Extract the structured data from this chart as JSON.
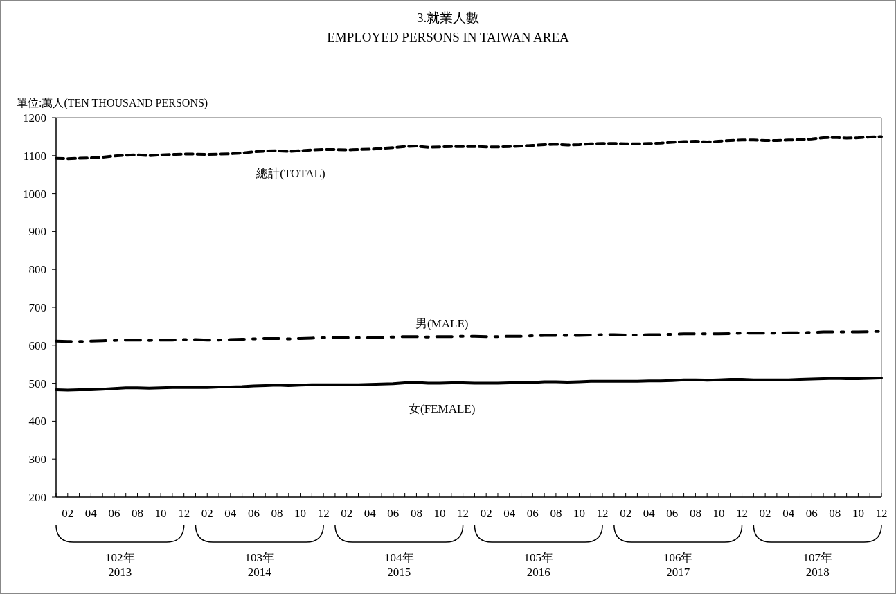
{
  "chart_data": {
    "type": "line",
    "title": "3.就業人數",
    "subtitle": "EMPLOYED PERSONS IN TAIWAN AREA",
    "ylabel": "單位:萬人(TEN THOUSAND PERSONS)",
    "categories": [
      null,
      "02",
      null,
      "04",
      null,
      "06",
      null,
      "08",
      null,
      "10",
      null,
      "12",
      null,
      "02",
      null,
      "04",
      null,
      "06",
      null,
      "08",
      null,
      "10",
      null,
      "12",
      null,
      "02",
      null,
      "04",
      null,
      "06",
      null,
      "08",
      null,
      "10",
      null,
      "12",
      null,
      "02",
      null,
      "04",
      null,
      "06",
      null,
      "08",
      null,
      "10",
      null,
      "12",
      null,
      "02",
      null,
      "04",
      null,
      "06",
      null,
      "08",
      null,
      "10",
      null,
      "12",
      null,
      "02",
      null,
      "04",
      null,
      "06",
      null,
      "08",
      null,
      "10",
      null,
      "12"
    ],
    "series": [
      {
        "name": "總計(TOTAL)",
        "color": "#000000",
        "line_style": "dashed",
        "values": [
          1093,
          1092,
          1093,
          1094,
          1096,
          1099,
          1101,
          1102,
          1100,
          1102,
          1103,
          1104,
          1104,
          1103,
          1104,
          1105,
          1107,
          1110,
          1112,
          1113,
          1111,
          1113,
          1115,
          1116,
          1116,
          1115,
          1116,
          1117,
          1119,
          1121,
          1124,
          1125,
          1122,
          1123,
          1124,
          1124,
          1124,
          1123,
          1123,
          1124,
          1125,
          1127,
          1129,
          1130,
          1128,
          1129,
          1131,
          1132,
          1132,
          1131,
          1131,
          1132,
          1133,
          1135,
          1137,
          1138,
          1136,
          1138,
          1140,
          1141,
          1141,
          1140,
          1140,
          1141,
          1142,
          1144,
          1147,
          1148,
          1146,
          1147,
          1149,
          1150
        ]
      },
      {
        "name": "男(MALE)",
        "color": "#000000",
        "line_style": "dashdot",
        "values": [
          611,
          610,
          610,
          611,
          612,
          613,
          614,
          614,
          613,
          614,
          614,
          615,
          615,
          614,
          614,
          615,
          616,
          617,
          618,
          618,
          617,
          618,
          619,
          620,
          620,
          620,
          620,
          620,
          621,
          622,
          623,
          623,
          622,
          623,
          623,
          624,
          624,
          623,
          623,
          624,
          624,
          625,
          626,
          626,
          626,
          626,
          627,
          628,
          628,
          627,
          627,
          628,
          628,
          629,
          630,
          630,
          630,
          630,
          631,
          632,
          632,
          632,
          632,
          633,
          633,
          634,
          635,
          635,
          635,
          635,
          636,
          637
        ]
      },
      {
        "name": "女(FEMALE)",
        "color": "#000000",
        "line_style": "solid",
        "values": [
          483,
          482,
          483,
          483,
          484,
          486,
          488,
          488,
          487,
          488,
          489,
          489,
          489,
          489,
          490,
          490,
          491,
          493,
          494,
          495,
          494,
          495,
          496,
          496,
          496,
          496,
          496,
          497,
          498,
          499,
          501,
          502,
          500,
          500,
          501,
          501,
          500,
          500,
          500,
          501,
          501,
          502,
          504,
          504,
          503,
          504,
          505,
          505,
          505,
          505,
          505,
          506,
          506,
          507,
          509,
          509,
          508,
          509,
          510,
          510,
          509,
          509,
          509,
          509,
          510,
          511,
          512,
          513,
          512,
          512,
          513,
          514
        ]
      }
    ],
    "ylim": [
      200,
      1200
    ],
    "yticks": [
      200,
      300,
      400,
      500,
      600,
      700,
      800,
      900,
      1000,
      1100,
      1200
    ],
    "annotations": [
      "102年\n2013",
      "103年\n2014",
      "104年\n2015",
      "105年\n2016",
      "106年\n2017",
      "107年\n2018"
    ],
    "grid": false,
    "legend": false,
    "marker": "none"
  }
}
